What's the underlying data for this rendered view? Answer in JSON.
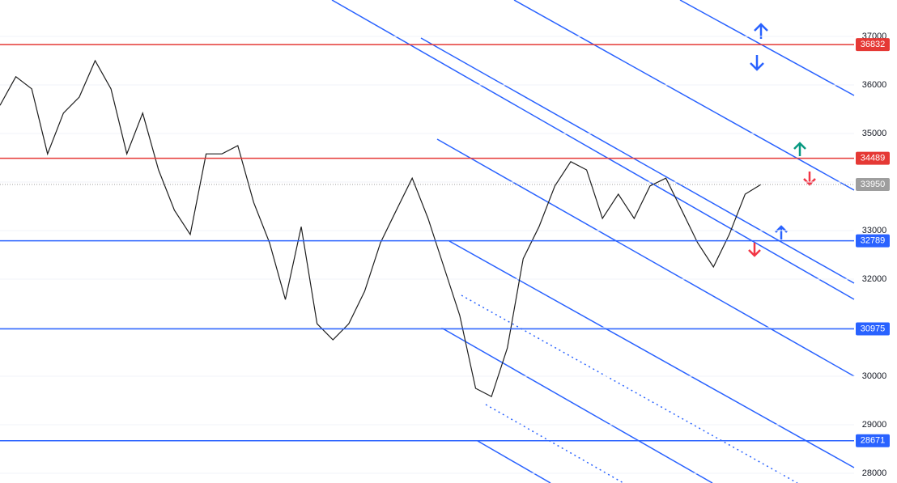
{
  "chart_data": {
    "type": "line",
    "ylim": [
      27800,
      37750
    ],
    "yticks": [
      28000,
      29000,
      30000,
      31000,
      32000,
      33000,
      34000,
      35000,
      36000,
      37000
    ],
    "grid": true,
    "series": [
      {
        "color": "#1e1e1e",
        "values": [
          35580,
          36170,
          35920,
          34580,
          35420,
          35750,
          36500,
          35920,
          34580,
          35420,
          34250,
          33420,
          32920,
          34580,
          34580,
          34750,
          33580,
          32750,
          31580,
          33080,
          31080,
          30750,
          31080,
          31750,
          32750,
          33420,
          34080,
          33250,
          32250,
          31250,
          29750,
          29580,
          30580,
          32420,
          33080,
          33920,
          34420,
          34250,
          33250,
          33750,
          33250,
          33920,
          34080,
          33420,
          32750,
          32250,
          32920,
          33750,
          33950
        ]
      }
    ],
    "levels": [
      {
        "value": 36832,
        "label": "36832",
        "color": "#e53935"
      },
      {
        "value": 34489,
        "label": "34489",
        "color": "#e53935"
      },
      {
        "value": 33950,
        "label": "33950",
        "color": "#9e9e9e"
      },
      {
        "value": 32789,
        "label": "32789",
        "color": "#2962ff"
      },
      {
        "value": 30975,
        "label": "30975",
        "color": "#2962ff"
      },
      {
        "value": 28671,
        "label": "28671",
        "color": "#2962ff"
      }
    ]
  }
}
